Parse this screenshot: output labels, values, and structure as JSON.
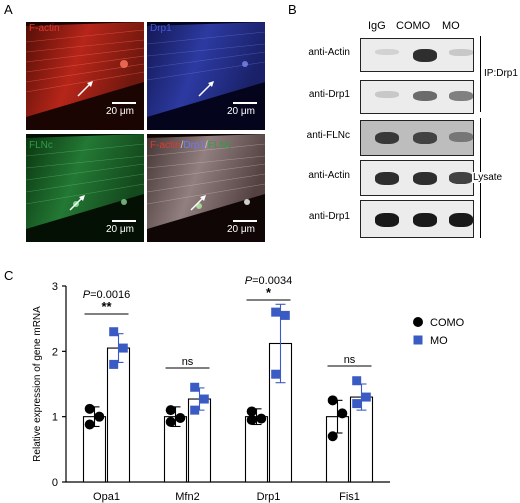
{
  "panel_letters": {
    "a": "A",
    "b": "B",
    "c": "C"
  },
  "microscopy": {
    "top_left_label": "F-actin",
    "top_right_label": "Drp1",
    "bottom_left_label": "FLNc",
    "merge_label_parts": [
      "F-actin",
      "/",
      "Drp1",
      "/",
      "FLNc"
    ],
    "scale_bar_text": "20 μm",
    "colors": {
      "factin": "#e03a2e",
      "drp1": "#4a55d8",
      "flnc": "#2f9e44",
      "merge": "#c8b4b0"
    }
  },
  "blot": {
    "column_labels": [
      "IgG",
      "COMO",
      "MO"
    ],
    "rows": [
      {
        "label": "anti-Actin",
        "bands": [
          0.05,
          0.85,
          0.1
        ],
        "background": "light"
      },
      {
        "label": "anti-Drp1",
        "bands": [
          0.1,
          0.55,
          0.45
        ],
        "background": "light"
      },
      {
        "label": "anti-FLNc",
        "bands": [
          0.8,
          0.75,
          0.5
        ],
        "background": "mid"
      },
      {
        "label": "anti-Actin",
        "bands": [
          0.85,
          0.85,
          0.75
        ],
        "background": "light"
      },
      {
        "label": "anti-Drp1",
        "bands": [
          0.95,
          0.95,
          0.95
        ],
        "background": "light"
      }
    ],
    "bracket_ip": "IP:Drp1",
    "bracket_lysate": "Lysate"
  },
  "chart_data": {
    "type": "bar",
    "ylabel": "Relative expression of gene mRNA",
    "xlabel": "",
    "ylim": [
      0,
      3
    ],
    "yticks": [
      "0",
      "1",
      "2",
      "3"
    ],
    "categories": [
      "Opa1",
      "Mfn2",
      "Drp1",
      "Fis1"
    ],
    "series": [
      {
        "name": "COMO",
        "color": "#000000",
        "marker": "circle",
        "values": [
          1.0,
          1.0,
          1.0,
          1.0
        ],
        "err": [
          0.15,
          0.15,
          0.12,
          0.25
        ],
        "points": [
          [
            1.12,
            0.88,
            1.0
          ],
          [
            1.1,
            0.92,
            0.98
          ],
          [
            1.08,
            0.95,
            0.97
          ],
          [
            1.25,
            0.7,
            1.05
          ]
        ]
      },
      {
        "name": "MO",
        "color": "#3b5bc4",
        "marker": "square",
        "values": [
          2.05,
          1.27,
          2.12,
          1.3
        ],
        "err": [
          0.22,
          0.17,
          0.6,
          0.2
        ],
        "points": [
          [
            2.3,
            1.8,
            2.05
          ],
          [
            1.45,
            1.1,
            1.27
          ],
          [
            2.6,
            1.65,
            2.55
          ],
          [
            1.55,
            1.2,
            1.3
          ]
        ]
      }
    ],
    "annotations": [
      {
        "category": "Opa1",
        "pvalue": "=0.0016",
        "p_letter": "P",
        "stars": "**"
      },
      {
        "category": "Mfn2",
        "stars": "ns"
      },
      {
        "category": "Drp1",
        "pvalue": "=0.0034",
        "p_letter": "P",
        "stars": "*"
      },
      {
        "category": "Fis1",
        "stars": "ns"
      }
    ],
    "grid": false,
    "legend_placement": "right"
  }
}
